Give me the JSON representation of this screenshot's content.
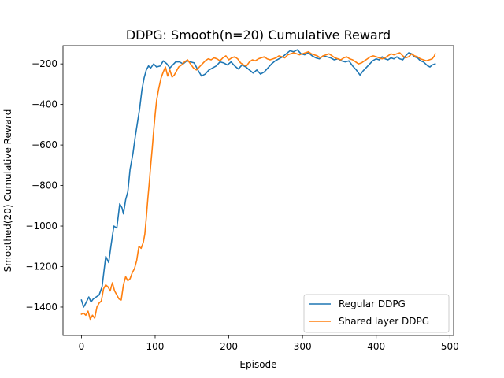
{
  "chart_data": {
    "type": "line",
    "title": "DDPG: Smooth(n=20) Cumulative Reward",
    "xlabel": "Episode",
    "ylabel": "Smoothed(20) Cumulative Reward",
    "xlim": [
      -25,
      505
    ],
    "ylim": [
      -1540,
      -110
    ],
    "xticks": [
      0,
      100,
      200,
      300,
      400,
      500
    ],
    "yticks": [
      -1400,
      -1200,
      -1000,
      -800,
      -600,
      -400,
      -200
    ],
    "xtick_labels": [
      "0",
      "100",
      "200",
      "300",
      "400",
      "500"
    ],
    "ytick_labels": [
      "−1400",
      "−1200",
      "−1000",
      "−800",
      "−600",
      "−400",
      "−200"
    ],
    "legend_position": "lower right",
    "grid": false,
    "series": [
      {
        "name": "Regular DDPG",
        "color": "#1f77b4",
        "points": [
          [
            0,
            -1365
          ],
          [
            3,
            -1400
          ],
          [
            6,
            -1380
          ],
          [
            10,
            -1350
          ],
          [
            13,
            -1375
          ],
          [
            16,
            -1360
          ],
          [
            20,
            -1350
          ],
          [
            24,
            -1340
          ],
          [
            28,
            -1300
          ],
          [
            30,
            -1240
          ],
          [
            33,
            -1150
          ],
          [
            37,
            -1180
          ],
          [
            40,
            -1100
          ],
          [
            44,
            -1000
          ],
          [
            48,
            -1010
          ],
          [
            52,
            -890
          ],
          [
            55,
            -910
          ],
          [
            57,
            -940
          ],
          [
            60,
            -870
          ],
          [
            63,
            -830
          ],
          [
            66,
            -720
          ],
          [
            70,
            -640
          ],
          [
            73,
            -560
          ],
          [
            76,
            -490
          ],
          [
            79,
            -420
          ],
          [
            82,
            -330
          ],
          [
            85,
            -270
          ],
          [
            88,
            -230
          ],
          [
            91,
            -210
          ],
          [
            94,
            -220
          ],
          [
            98,
            -200
          ],
          [
            102,
            -215
          ],
          [
            107,
            -210
          ],
          [
            111,
            -185
          ],
          [
            116,
            -200
          ],
          [
            120,
            -220
          ],
          [
            124,
            -205
          ],
          [
            128,
            -190
          ],
          [
            133,
            -190
          ],
          [
            138,
            -200
          ],
          [
            143,
            -185
          ],
          [
            148,
            -190
          ],
          [
            153,
            -195
          ],
          [
            158,
            -230
          ],
          [
            163,
            -260
          ],
          [
            168,
            -250
          ],
          [
            173,
            -230
          ],
          [
            178,
            -220
          ],
          [
            183,
            -210
          ],
          [
            188,
            -190
          ],
          [
            193,
            -195
          ],
          [
            198,
            -205
          ],
          [
            203,
            -190
          ],
          [
            208,
            -210
          ],
          [
            213,
            -225
          ],
          [
            218,
            -205
          ],
          [
            223,
            -215
          ],
          [
            228,
            -230
          ],
          [
            233,
            -245
          ],
          [
            238,
            -230
          ],
          [
            243,
            -250
          ],
          [
            248,
            -240
          ],
          [
            253,
            -220
          ],
          [
            258,
            -200
          ],
          [
            263,
            -185
          ],
          [
            268,
            -175
          ],
          [
            273,
            -165
          ],
          [
            278,
            -150
          ],
          [
            283,
            -135
          ],
          [
            288,
            -140
          ],
          [
            293,
            -130
          ],
          [
            298,
            -150
          ],
          [
            303,
            -155
          ],
          [
            308,
            -145
          ],
          [
            313,
            -160
          ],
          [
            318,
            -170
          ],
          [
            323,
            -175
          ],
          [
            328,
            -160
          ],
          [
            333,
            -165
          ],
          [
            338,
            -170
          ],
          [
            343,
            -180
          ],
          [
            348,
            -175
          ],
          [
            353,
            -185
          ],
          [
            358,
            -190
          ],
          [
            363,
            -185
          ],
          [
            368,
            -210
          ],
          [
            373,
            -230
          ],
          [
            378,
            -255
          ],
          [
            382,
            -235
          ],
          [
            386,
            -220
          ],
          [
            390,
            -205
          ],
          [
            395,
            -185
          ],
          [
            400,
            -175
          ],
          [
            404,
            -180
          ],
          [
            408,
            -165
          ],
          [
            412,
            -175
          ],
          [
            416,
            -180
          ],
          [
            420,
            -170
          ],
          [
            424,
            -175
          ],
          [
            428,
            -165
          ],
          [
            432,
            -175
          ],
          [
            436,
            -180
          ],
          [
            440,
            -160
          ],
          [
            444,
            -145
          ],
          [
            448,
            -150
          ],
          [
            452,
            -165
          ],
          [
            456,
            -170
          ],
          [
            460,
            -185
          ],
          [
            464,
            -190
          ],
          [
            467,
            -200
          ],
          [
            470,
            -210
          ],
          [
            473,
            -215
          ],
          [
            476,
            -205
          ],
          [
            480,
            -200
          ]
        ]
      },
      {
        "name": "Shared layer DDPG",
        "color": "#ff7f0e",
        "points": [
          [
            0,
            -1435
          ],
          [
            3,
            -1430
          ],
          [
            6,
            -1440
          ],
          [
            9,
            -1420
          ],
          [
            12,
            -1460
          ],
          [
            15,
            -1440
          ],
          [
            18,
            -1455
          ],
          [
            21,
            -1400
          ],
          [
            24,
            -1380
          ],
          [
            27,
            -1370
          ],
          [
            30,
            -1310
          ],
          [
            33,
            -1290
          ],
          [
            36,
            -1300
          ],
          [
            39,
            -1320
          ],
          [
            42,
            -1280
          ],
          [
            45,
            -1320
          ],
          [
            48,
            -1340
          ],
          [
            51,
            -1360
          ],
          [
            54,
            -1365
          ],
          [
            57,
            -1290
          ],
          [
            60,
            -1250
          ],
          [
            63,
            -1270
          ],
          [
            66,
            -1260
          ],
          [
            69,
            -1230
          ],
          [
            72,
            -1210
          ],
          [
            75,
            -1170
          ],
          [
            78,
            -1100
          ],
          [
            81,
            -1110
          ],
          [
            84,
            -1080
          ],
          [
            86,
            -1040
          ],
          [
            88,
            -960
          ],
          [
            90,
            -870
          ],
          [
            92,
            -790
          ],
          [
            94,
            -700
          ],
          [
            96,
            -620
          ],
          [
            98,
            -530
          ],
          [
            100,
            -450
          ],
          [
            102,
            -380
          ],
          [
            105,
            -320
          ],
          [
            108,
            -270
          ],
          [
            111,
            -240
          ],
          [
            114,
            -215
          ],
          [
            117,
            -260
          ],
          [
            120,
            -230
          ],
          [
            123,
            -265
          ],
          [
            126,
            -255
          ],
          [
            129,
            -235
          ],
          [
            132,
            -215
          ],
          [
            136,
            -205
          ],
          [
            140,
            -190
          ],
          [
            144,
            -180
          ],
          [
            148,
            -200
          ],
          [
            152,
            -220
          ],
          [
            156,
            -230
          ],
          [
            160,
            -215
          ],
          [
            164,
            -200
          ],
          [
            168,
            -185
          ],
          [
            172,
            -175
          ],
          [
            176,
            -180
          ],
          [
            180,
            -170
          ],
          [
            184,
            -175
          ],
          [
            188,
            -185
          ],
          [
            192,
            -170
          ],
          [
            196,
            -160
          ],
          [
            200,
            -180
          ],
          [
            204,
            -170
          ],
          [
            208,
            -165
          ],
          [
            212,
            -175
          ],
          [
            216,
            -195
          ],
          [
            220,
            -205
          ],
          [
            224,
            -210
          ],
          [
            228,
            -190
          ],
          [
            232,
            -180
          ],
          [
            236,
            -185
          ],
          [
            240,
            -175
          ],
          [
            244,
            -170
          ],
          [
            248,
            -165
          ],
          [
            252,
            -175
          ],
          [
            256,
            -180
          ],
          [
            260,
            -175
          ],
          [
            264,
            -170
          ],
          [
            268,
            -160
          ],
          [
            272,
            -165
          ],
          [
            276,
            -170
          ],
          [
            280,
            -155
          ],
          [
            284,
            -150
          ],
          [
            288,
            -145
          ],
          [
            292,
            -150
          ],
          [
            296,
            -155
          ],
          [
            300,
            -150
          ],
          [
            304,
            -145
          ],
          [
            308,
            -140
          ],
          [
            312,
            -150
          ],
          [
            316,
            -155
          ],
          [
            320,
            -160
          ],
          [
            324,
            -170
          ],
          [
            328,
            -160
          ],
          [
            332,
            -155
          ],
          [
            336,
            -150
          ],
          [
            340,
            -160
          ],
          [
            344,
            -170
          ],
          [
            348,
            -175
          ],
          [
            352,
            -180
          ],
          [
            356,
            -170
          ],
          [
            360,
            -165
          ],
          [
            364,
            -175
          ],
          [
            368,
            -180
          ],
          [
            372,
            -190
          ],
          [
            376,
            -200
          ],
          [
            380,
            -195
          ],
          [
            384,
            -185
          ],
          [
            388,
            -175
          ],
          [
            392,
            -165
          ],
          [
            396,
            -160
          ],
          [
            400,
            -165
          ],
          [
            404,
            -170
          ],
          [
            408,
            -175
          ],
          [
            412,
            -170
          ],
          [
            416,
            -160
          ],
          [
            420,
            -150
          ],
          [
            424,
            -155
          ],
          [
            428,
            -150
          ],
          [
            432,
            -145
          ],
          [
            436,
            -160
          ],
          [
            440,
            -170
          ],
          [
            444,
            -165
          ],
          [
            448,
            -150
          ],
          [
            452,
            -160
          ],
          [
            456,
            -165
          ],
          [
            460,
            -175
          ],
          [
            464,
            -180
          ],
          [
            468,
            -185
          ],
          [
            472,
            -180
          ],
          [
            476,
            -175
          ],
          [
            479,
            -160
          ],
          [
            480,
            -150
          ]
        ]
      }
    ]
  }
}
